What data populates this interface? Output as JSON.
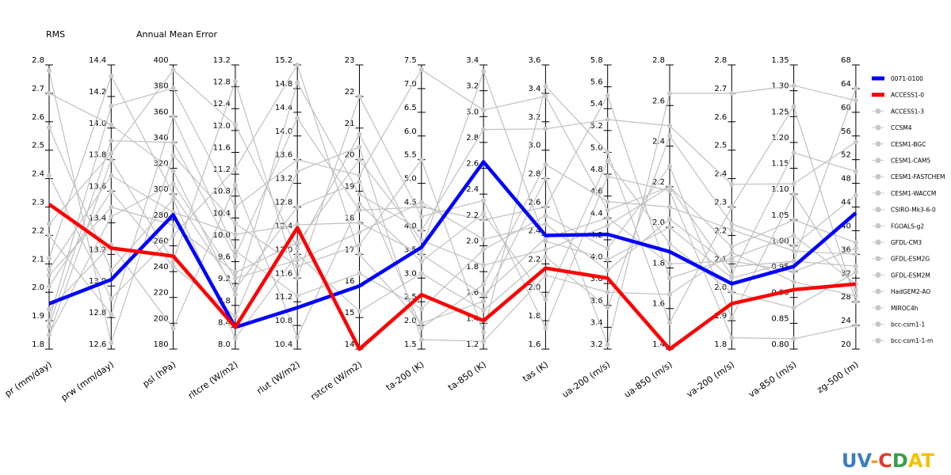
{
  "header": {
    "left": "RMS",
    "center": "Annual Mean Error"
  },
  "logo": {
    "text": "UV-CDAT",
    "colors": [
      "#3a7cc4",
      "#f0a020",
      "#e23a2a",
      "#37a048",
      "#f6c000"
    ]
  },
  "chart_data": {
    "type": "parallel-coordinates",
    "title": "Annual Mean Error",
    "axes": [
      {
        "label": "pr (mm/day)",
        "min": 1.8,
        "max": 2.8,
        "ticks": [
          "1.8",
          "1.9",
          "2.0",
          "2.1",
          "2.2",
          "2.3",
          "2.4",
          "2.5",
          "2.6",
          "2.7",
          "2.8"
        ]
      },
      {
        "label": "prw (mm/day)",
        "min": 12.6,
        "max": 14.4,
        "ticks": [
          "12.6",
          "12.8",
          "13.0",
          "13.2",
          "13.4",
          "13.6",
          "13.8",
          "14.0",
          "14.2",
          "14.4"
        ]
      },
      {
        "label": "psl (hPa)",
        "min": 180,
        "max": 400,
        "ticks": [
          "180",
          "200",
          "220",
          "240",
          "260",
          "280",
          "300",
          "320",
          "340",
          "360",
          "380",
          "400"
        ]
      },
      {
        "label": "rltcre (W/m2)",
        "min": 8.0,
        "max": 13.2,
        "ticks": [
          "8.0",
          "8.4",
          "8.8",
          "9.2",
          "9.6",
          "10.0",
          "10.4",
          "10.8",
          "11.2",
          "11.6",
          "12.0",
          "12.4",
          "12.8",
          "13.2"
        ]
      },
      {
        "label": "rlut (W/m2)",
        "min": 10.4,
        "max": 15.2,
        "ticks": [
          "10.4",
          "10.8",
          "11.2",
          "11.6",
          "12.0",
          "12.4",
          "12.8",
          "13.2",
          "13.6",
          "14.0",
          "14.4",
          "14.8",
          "15.2"
        ]
      },
      {
        "label": "rstcre (W/m2)",
        "min": 14,
        "max": 23,
        "ticks": [
          "14",
          "15",
          "16",
          "17",
          "18",
          "19",
          "20",
          "21",
          "22",
          "23"
        ]
      },
      {
        "label": "ta-200 (K)",
        "min": 1.5,
        "max": 7.5,
        "ticks": [
          "1.5",
          "2.0",
          "2.5",
          "3.0",
          "3.5",
          "4.0",
          "4.5",
          "5.0",
          "5.5",
          "6.0",
          "6.5",
          "7.0",
          "7.5"
        ]
      },
      {
        "label": "ta-850 (K)",
        "min": 1.2,
        "max": 3.4,
        "ticks": [
          "1.2",
          "1.4",
          "1.6",
          "1.8",
          "2.0",
          "2.2",
          "2.4",
          "2.6",
          "2.8",
          "3.0",
          "3.2",
          "3.4"
        ]
      },
      {
        "label": "tas (K)",
        "min": 1.6,
        "max": 3.6,
        "ticks": [
          "1.6",
          "1.8",
          "2.0",
          "2.2",
          "2.4",
          "2.6",
          "2.8",
          "3.0",
          "3.2",
          "3.4",
          "3.6"
        ]
      },
      {
        "label": "ua-200 (m/s)",
        "min": 3.2,
        "max": 5.8,
        "ticks": [
          "3.2",
          "3.4",
          "3.6",
          "3.8",
          "4.0",
          "4.2",
          "4.4",
          "4.6",
          "4.8",
          "5.0",
          "5.2",
          "5.4",
          "5.6",
          "5.8"
        ]
      },
      {
        "label": "ua-850 (m/s)",
        "min": 1.4,
        "max": 2.8,
        "ticks": [
          "1.4",
          "1.6",
          "1.8",
          "2.0",
          "2.2",
          "2.4",
          "2.6",
          "2.8"
        ]
      },
      {
        "label": "va-200 (m/s)",
        "min": 1.8,
        "max": 2.8,
        "ticks": [
          "1.8",
          "1.9",
          "2.0",
          "2.1",
          "2.2",
          "2.3",
          "2.4",
          "2.5",
          "2.6",
          "2.7",
          "2.8"
        ]
      },
      {
        "label": "va-850 (m/s)",
        "min": 0.8,
        "max": 1.35,
        "ticks": [
          "0.80",
          "0.85",
          "0.90",
          "0.95",
          "1.00",
          "1.05",
          "1.10",
          "1.15",
          "1.20",
          "1.25",
          "1.30",
          "1.35"
        ]
      },
      {
        "label": "zg-500 (m)",
        "min": 20,
        "max": 68,
        "ticks": [
          "20",
          "24",
          "28",
          "32",
          "36",
          "40",
          "44",
          "48",
          "52",
          "56",
          "60",
          "64",
          "68"
        ]
      }
    ],
    "series": [
      {
        "name": "0071-0100",
        "color": "#0000ff",
        "highlight": true,
        "values": [
          1.96,
          13.04,
          284,
          8.4,
          11.1,
          16.0,
          3.65,
          2.65,
          2.4,
          4.25,
          1.88,
          2.03,
          0.96,
          43
        ]
      },
      {
        "name": "ACCESS1-0",
        "color": "#ff0000",
        "highlight": true,
        "values": [
          2.31,
          13.24,
          252,
          8.4,
          12.45,
          14.0,
          2.65,
          1.42,
          2.17,
          3.85,
          1.4,
          1.96,
          0.915,
          31
        ]
      },
      {
        "name": "ACCESS1-3",
        "color": "#c0c0c0",
        "highlight": false,
        "values": [
          2.24,
          13.84,
          396,
          12.1,
          12.1,
          20.8,
          3.6,
          3.35,
          2.36,
          4.02,
          2.0,
          2.05,
          0.97,
          64
        ]
      },
      {
        "name": "CCSM4",
        "color": "#c0c0c0",
        "highlight": false,
        "values": [
          1.88,
          13.92,
          340,
          9.7,
          14.3,
          18.4,
          4.5,
          2.2,
          2.6,
          5.52,
          1.75,
          2.12,
          1.02,
          31
        ]
      },
      {
        "name": "CESM1-BGC",
        "color": "#c0c0c0",
        "highlight": false,
        "values": [
          2.12,
          14.33,
          300,
          9.1,
          12.8,
          19.3,
          1.95,
          1.7,
          2.9,
          4.55,
          2.1,
          2.22,
          0.99,
          36
        ]
      },
      {
        "name": "CESM1-CAM5",
        "color": "#c0c0c0",
        "highlight": false,
        "values": [
          2.78,
          12.64,
          330,
          10.3,
          11.8,
          17.3,
          5.5,
          1.33,
          3.45,
          5.0,
          1.53,
          2.3,
          1.27,
          28
        ]
      },
      {
        "name": "CESM1-FASTCHEM",
        "color": "#c0c0c0",
        "highlight": false,
        "values": [
          2.06,
          13.5,
          276,
          9.4,
          12.2,
          20.0,
          3.8,
          1.85,
          2.3,
          4.33,
          2.2,
          2.16,
          1.05,
          38
        ]
      },
      {
        "name": "CESM1-WACCM",
        "color": "#c0c0c0",
        "highlight": false,
        "values": [
          1.85,
          13.8,
          248,
          12.9,
          11.6,
          22.0,
          4.3,
          2.35,
          1.75,
          4.78,
          2.18,
          1.84,
          0.82,
          24
        ]
      },
      {
        "name": "CSIRO-Mk3-6-0",
        "color": "#c0c0c0",
        "highlight": false,
        "values": [
          2.41,
          12.92,
          268,
          11.3,
          15.2,
          17.0,
          2.05,
          1.57,
          2.8,
          3.24,
          2.66,
          2.7,
          1.31,
          62
        ]
      },
      {
        "name": "FGOALS-g2",
        "color": "#c0c0c0",
        "highlight": false,
        "values": [
          1.9,
          14.14,
          382,
          10.6,
          13.6,
          19.5,
          7.4,
          3.05,
          3.38,
          4.47,
          2.2,
          2.06,
          1.18,
          50
        ]
      },
      {
        "name": "GFDL-CM3",
        "color": "#c0c0c0",
        "highlight": false,
        "values": [
          2.02,
          13.6,
          244,
          8.6,
          13.4,
          20.4,
          1.7,
          1.26,
          2.12,
          3.72,
          1.67,
          2.14,
          0.93,
          29
        ]
      },
      {
        "name": "GFDL-ESM2G",
        "color": "#c0c0c0",
        "highlight": false,
        "values": [
          2.2,
          12.82,
          360,
          9.8,
          11.3,
          16.4,
          2.35,
          1.97,
          2.54,
          4.12,
          2.3,
          1.91,
          1.1,
          30
        ]
      },
      {
        "name": "GFDL-ESM2M",
        "color": "#c0c0c0",
        "highlight": false,
        "values": [
          1.94,
          13.26,
          196,
          11.0,
          10.6,
          18.6,
          3.35,
          2.25,
          1.95,
          4.92,
          1.92,
          2.0,
          0.88,
          33
        ]
      },
      {
        "name": "HadGEM2-AO",
        "color": "#c0c0c0",
        "highlight": false,
        "values": [
          2.58,
          13.1,
          296,
          8.2,
          12.0,
          15.2,
          3.1,
          1.5,
          2.25,
          3.58,
          2.45,
          2.24,
          1.0,
          46
        ]
      },
      {
        "name": "MIROC4h",
        "color": "#c0c0c0",
        "highlight": false,
        "values": [
          2.7,
          14.02,
          318,
          9.0,
          14.9,
          18.9,
          4.0,
          2.9,
          3.15,
          5.3,
          2.5,
          2.38,
          1.12,
          55
        ]
      },
      {
        "name": "bcc-csm1-1",
        "color": "#c0c0c0",
        "highlight": false,
        "values": [
          1.85,
          13.44,
          308,
          9.3,
          11.9,
          17.7,
          4.6,
          2.05,
          2.48,
          3.92,
          2.04,
          2.09,
          0.97,
          34
        ]
      },
      {
        "name": "bcc-csm1-1-m",
        "color": "#c0c0c0",
        "highlight": false,
        "values": [
          2.08,
          13.7,
          286,
          10.1,
          12.5,
          18.0,
          3.5,
          1.62,
          2.38,
          4.4,
          1.82,
          2.11,
          0.95,
          37
        ]
      }
    ],
    "legend_position": "right"
  }
}
